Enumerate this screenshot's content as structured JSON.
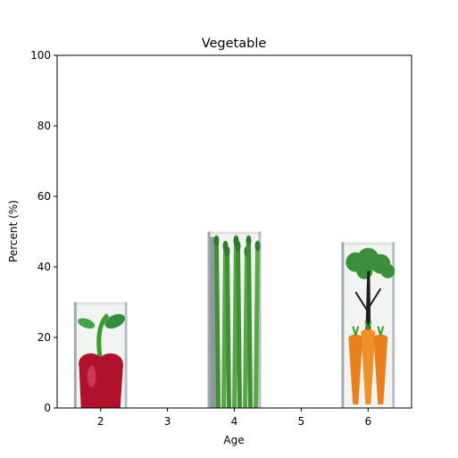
{
  "chart_data": {
    "type": "bar",
    "title": "Vegetable",
    "xlabel": "Age",
    "ylabel": "Percent (%)",
    "x": [
      2,
      4,
      6
    ],
    "values": [
      30,
      50,
      47
    ],
    "bar_images": [
      "bell-pepper",
      "asparagus",
      "carrots-with-tree"
    ],
    "xlim": [
      1.35,
      6.65
    ],
    "ylim": [
      0,
      100
    ],
    "xticks": [
      2,
      3,
      4,
      5,
      6
    ],
    "yticks": [
      0,
      20,
      40,
      60,
      80,
      100
    ],
    "grid": false,
    "bar_width": 0.8,
    "colors": {
      "pepper_red": "#b0122e",
      "leaf_green": "#3a9a2a",
      "asparagus_green": "#5aa845",
      "carrot_orange": "#e8801e",
      "frame_gray": "#7a8a92"
    }
  }
}
